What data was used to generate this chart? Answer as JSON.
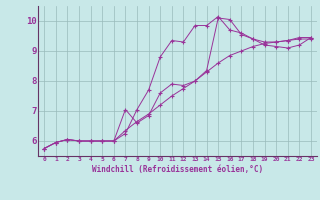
{
  "xlabel": "Windchill (Refroidissement éolien,°C)",
  "bg_color": "#c8e8e8",
  "line_color": "#993399",
  "grid_color": "#99bbbb",
  "axis_color": "#663366",
  "xmin": -0.5,
  "xmax": 23.5,
  "ymin": 5.5,
  "ymax": 10.5,
  "yticks": [
    6,
    7,
    8,
    9,
    10
  ],
  "xticks": [
    0,
    1,
    2,
    3,
    4,
    5,
    6,
    7,
    8,
    9,
    10,
    11,
    12,
    13,
    14,
    15,
    16,
    17,
    18,
    19,
    20,
    21,
    22,
    23
  ],
  "line1_x": [
    0,
    1,
    2,
    3,
    4,
    5,
    6,
    7,
    8,
    9,
    10,
    11,
    12,
    13,
    14,
    15,
    16,
    17,
    18,
    19,
    20,
    21,
    22,
    23
  ],
  "line1_y": [
    5.75,
    5.95,
    6.05,
    6.0,
    6.0,
    6.0,
    6.0,
    6.35,
    6.65,
    6.9,
    7.2,
    7.5,
    7.75,
    8.0,
    8.3,
    8.6,
    8.85,
    9.0,
    9.15,
    9.25,
    9.3,
    9.35,
    9.4,
    9.4
  ],
  "line2_x": [
    0,
    1,
    2,
    3,
    4,
    5,
    6,
    7,
    8,
    9,
    10,
    11,
    12,
    13,
    14,
    15,
    16,
    17,
    18,
    19,
    20,
    21,
    22,
    23
  ],
  "line2_y": [
    5.75,
    5.95,
    6.05,
    6.0,
    6.0,
    6.0,
    6.0,
    7.05,
    6.6,
    6.85,
    7.6,
    7.9,
    7.85,
    8.0,
    8.35,
    10.1,
    10.05,
    9.55,
    9.4,
    9.3,
    9.3,
    9.35,
    9.45,
    9.45
  ],
  "line3_x": [
    0,
    1,
    2,
    3,
    4,
    5,
    6,
    7,
    8,
    9,
    10,
    11,
    12,
    13,
    14,
    15,
    16,
    17,
    18,
    19,
    20,
    21,
    22,
    23
  ],
  "line3_y": [
    5.75,
    5.95,
    6.05,
    6.0,
    6.0,
    6.0,
    6.0,
    6.25,
    7.05,
    7.7,
    8.8,
    9.35,
    9.3,
    9.85,
    9.85,
    10.15,
    9.7,
    9.6,
    9.4,
    9.2,
    9.15,
    9.1,
    9.2,
    9.45
  ]
}
